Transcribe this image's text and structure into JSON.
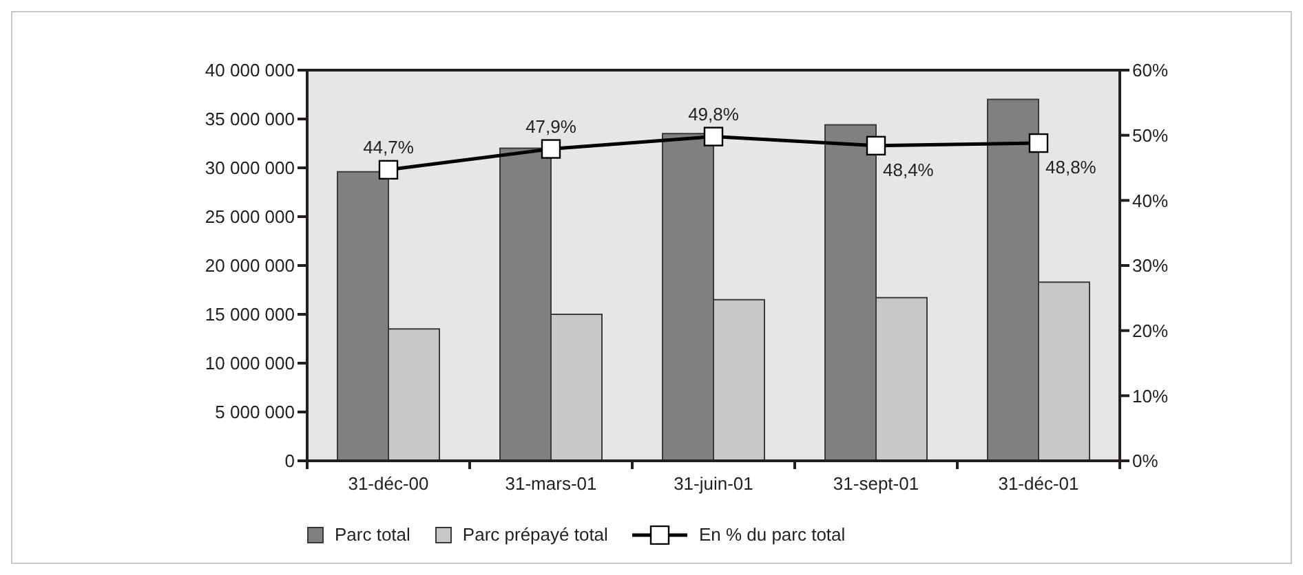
{
  "chart_data": {
    "type": "bar",
    "categories": [
      "31-déc-00",
      "31-mars-01",
      "31-juin-01",
      "31-sept-01",
      "31-déc-01"
    ],
    "series": [
      {
        "name": "Parc total",
        "color": "#808080",
        "values": [
          29600000,
          32000000,
          33500000,
          34400000,
          37000000
        ]
      },
      {
        "name": "Parc prépayé total",
        "color": "#c8c8c8",
        "values": [
          13500000,
          15000000,
          16500000,
          16700000,
          18300000
        ]
      },
      {
        "name": "En % du parc total",
        "type": "line",
        "axis": "y2",
        "color": "#000000",
        "values": [
          44.7,
          47.9,
          49.8,
          48.4,
          48.8
        ],
        "value_labels": [
          "44,7%",
          "47,9%",
          "49,8%",
          "48,4%",
          "48,8%"
        ]
      }
    ],
    "ylim": [
      0,
      40000000
    ],
    "yticks": [
      0,
      {
        "value": 5000000,
        "label": "5 000 000"
      },
      {
        "value": 10000000,
        "label": "10 000 000"
      },
      {
        "value": 15000000,
        "label": "15 000 000"
      },
      {
        "value": 20000000,
        "label": "20 000 000"
      },
      {
        "value": 25000000,
        "label": "25 000 000"
      },
      {
        "value": 30000000,
        "label": "30 000 000"
      },
      {
        "value": 35000000,
        "label": "35 000 000"
      },
      {
        "value": 40000000,
        "label": "40 000 000"
      }
    ],
    "y2lim": [
      0,
      60
    ],
    "y2ticks": [
      {
        "value": 0,
        "label": "0%"
      },
      {
        "value": 10,
        "label": "10%"
      },
      {
        "value": 20,
        "label": "20%"
      },
      {
        "value": 30,
        "label": "30%"
      },
      {
        "value": 40,
        "label": "40%"
      },
      {
        "value": 50,
        "label": "50%"
      },
      {
        "value": 60,
        "label": "60%"
      }
    ],
    "legend": "bottom",
    "marker": "square"
  }
}
